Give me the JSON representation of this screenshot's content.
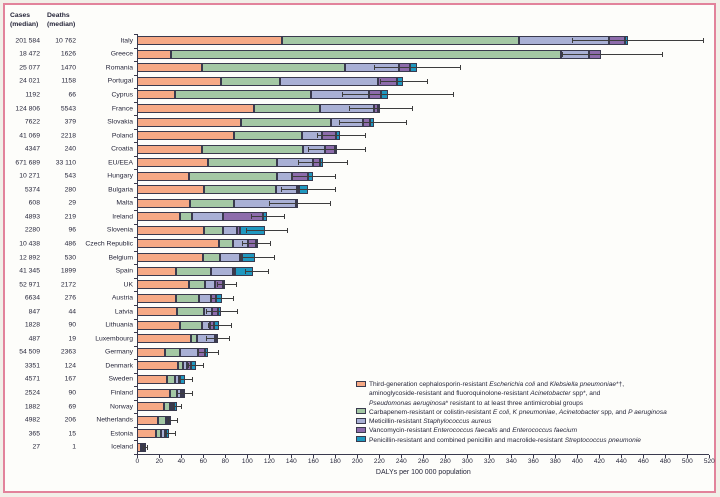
{
  "header": {
    "cases_label": "Cases\n(median)",
    "deaths_label": "Deaths\n(median)"
  },
  "colors": {
    "frame_pink": "#e2839b",
    "background_outer": "#f2efe8",
    "background_inner": "#fdfdfa",
    "text": "#26263a",
    "outline": "#3a3a4e",
    "error_bar": "#3d3d3d",
    "cephalosporin": "#f6a985",
    "carbapenem": "#a4c8a4",
    "mrsa": "#a9b0d5",
    "vre": "#8d6cab",
    "pneumo": "#1f98bf"
  },
  "chart_data": {
    "type": "bar",
    "orientation": "horizontal-stacked",
    "xlabel": "DALYs per 100 000 population",
    "xlim": [
      0,
      520
    ],
    "xtick_step": 20,
    "grid": false,
    "legend_position": "bottom-right",
    "series_keys": [
      "cephalosporin",
      "carbapenem",
      "mrsa",
      "vre",
      "pneumo"
    ],
    "countries": [
      {
        "name": "Italy",
        "cases": "201 584",
        "deaths": "10 762",
        "segments": [
          132,
          215,
          82,
          14,
          3
        ],
        "ci": [
          395,
          514
        ]
      },
      {
        "name": "Greece",
        "cases": "18 472",
        "deaths": "1626",
        "segments": [
          31,
          354,
          26,
          11,
          0
        ],
        "ci": [
          386,
          477
        ]
      },
      {
        "name": "Romania",
        "cases": "25 077",
        "deaths": "1470",
        "segments": [
          59,
          130,
          49,
          10,
          6
        ],
        "ci": [
          215,
          293
        ]
      },
      {
        "name": "Portugal",
        "cases": "24 021",
        "deaths": "1158",
        "segments": [
          76,
          54,
          89,
          17,
          6
        ],
        "ci": [
          221,
          263
        ]
      },
      {
        "name": "Cyprus",
        "cases": "1192",
        "deaths": "66",
        "segments": [
          34,
          124,
          53,
          11,
          6
        ],
        "ci": [
          186,
          287
        ]
      },
      {
        "name": "France",
        "cases": "124 806",
        "deaths": "5543",
        "segments": [
          106,
          60,
          49,
          4,
          2
        ],
        "ci": [
          192,
          250
        ]
      },
      {
        "name": "Slovakia",
        "cases": "7622",
        "deaths": "379",
        "segments": [
          94,
          82,
          29,
          7,
          3
        ],
        "ci": [
          183,
          244
        ]
      },
      {
        "name": "Poland",
        "cases": "41 069",
        "deaths": "2218",
        "segments": [
          88,
          62,
          18,
          13,
          3
        ],
        "ci": [
          163,
          207
        ]
      },
      {
        "name": "Croatia",
        "cases": "4347",
        "deaths": "240",
        "segments": [
          59,
          92,
          20,
          9,
          2
        ],
        "ci": [
          155,
          207
        ]
      },
      {
        "name": "EU/EEA",
        "cases": "671 689",
        "deaths": "33 110",
        "segments": [
          64,
          63,
          33,
          6,
          3
        ],
        "ci": [
          146,
          191
        ]
      },
      {
        "name": "Hungary",
        "cases": "10 271",
        "deaths": "543",
        "segments": [
          47,
          80,
          14,
          14,
          5
        ],
        "ci": [
          140,
          180
        ]
      },
      {
        "name": "Bulgaria",
        "cases": "5374",
        "deaths": "280",
        "segments": [
          61,
          65,
          19,
          2,
          8
        ],
        "ci": [
          131,
          180
        ]
      },
      {
        "name": "Malta",
        "cases": "608",
        "deaths": "29",
        "segments": [
          48,
          40,
          56,
          0,
          1
        ],
        "ci": [
          120,
          175
        ]
      },
      {
        "name": "Ireland",
        "cases": "4893",
        "deaths": "219",
        "segments": [
          39,
          11,
          28,
          36,
          4
        ],
        "ci": [
          103,
          133
        ]
      },
      {
        "name": "Slovenia",
        "cases": "2280",
        "deaths": "96",
        "segments": [
          61,
          17,
          13,
          2,
          23
        ],
        "ci": [
          99,
          136
        ]
      },
      {
        "name": "Czech Republic",
        "cases": "10 438",
        "deaths": "486",
        "segments": [
          74,
          13,
          14,
          7,
          1
        ],
        "ci": [
          95,
          121
        ]
      },
      {
        "name": "Belgium",
        "cases": "12 892",
        "deaths": "530",
        "segments": [
          60,
          15,
          18,
          2,
          12
        ],
        "ci": [
          93,
          124
        ]
      },
      {
        "name": "Spain",
        "cases": "41 345",
        "deaths": "1899",
        "segments": [
          35,
          32,
          20,
          2,
          16
        ],
        "ci": [
          98,
          119
        ]
      },
      {
        "name": "UK",
        "cases": "52 971",
        "deaths": "2172",
        "segments": [
          47,
          15,
          9,
          7,
          2
        ],
        "ci": [
          72,
          90
        ]
      },
      {
        "name": "Austria",
        "cases": "6634",
        "deaths": "276",
        "segments": [
          35,
          21,
          11,
          5,
          5
        ],
        "ci": [
          67,
          87
        ]
      },
      {
        "name": "Latvia",
        "cases": "847",
        "deaths": "44",
        "segments": [
          36,
          25,
          7,
          5,
          3
        ],
        "ci": [
          62,
          91
        ]
      },
      {
        "name": "Lithuania",
        "cases": "1828",
        "deaths": "90",
        "segments": [
          39,
          20,
          7,
          4,
          4
        ],
        "ci": [
          64,
          85
        ]
      },
      {
        "name": "Luxembourg",
        "cases": "487",
        "deaths": "19",
        "segments": [
          49,
          5,
          17,
          1,
          1
        ],
        "ci": [
          62,
          83
        ]
      },
      {
        "name": "Germany",
        "cases": "54 509",
        "deaths": "2363",
        "segments": [
          25,
          14,
          16,
          7,
          2
        ],
        "ci": [
          55,
          73
        ]
      },
      {
        "name": "Denmark",
        "cases": "3351",
        "deaths": "124",
        "segments": [
          37,
          5,
          3,
          4,
          4
        ],
        "ci": [
          46,
          60
        ]
      },
      {
        "name": "Sweden",
        "cases": "4571",
        "deaths": "167",
        "segments": [
          27,
          7,
          4,
          1,
          4
        ],
        "ci": [
          38,
          50
        ]
      },
      {
        "name": "Finland",
        "cases": "2524",
        "deaths": "90",
        "segments": [
          30,
          6,
          4,
          1.5,
          0.5
        ],
        "ci": [
          36,
          50
        ]
      },
      {
        "name": "Norway",
        "cases": "1882",
        "deaths": "69",
        "segments": [
          24,
          6,
          2,
          1,
          3
        ],
        "ci": [
          32,
          40
        ]
      },
      {
        "name": "Netherlands",
        "cases": "4982",
        "deaths": "206",
        "segments": [
          19,
          7,
          2,
          1,
          2
        ],
        "ci": [
          28,
          36
        ]
      },
      {
        "name": "Estonia",
        "cases": "365",
        "deaths": "15",
        "segments": [
          17,
          5,
          3,
          1,
          3
        ],
        "ci": [
          25,
          34
        ]
      },
      {
        "name": "Iceland",
        "cases": "27",
        "deaths": "1",
        "segments": [
          3.5,
          1.5,
          0.5,
          0.5,
          1
        ],
        "ci": [
          5,
          9
        ]
      }
    ]
  },
  "legend": {
    "items": [
      {
        "key": "cephalosporin",
        "lines": [
          [
            {
              "t": "Third-generation cephalosporin-resistant "
            },
            {
              "t": "Escherichia coli",
              "i": true
            },
            {
              "t": " and "
            },
            {
              "t": "Klebsiella pneumoniae",
              "i": true
            },
            {
              "t": "*†,"
            }
          ],
          [
            {
              "t": "aminoglycoside-resistant and fluoroquinolone-resistant "
            },
            {
              "t": "Acinetobacter",
              "i": true
            },
            {
              "t": " spp*, and"
            }
          ],
          [
            {
              "t": "Pseudomonas aeruginosa",
              "i": true
            },
            {
              "t": "* resistant to at least three antimicrobial groups"
            }
          ]
        ]
      },
      {
        "key": "carbapenem",
        "lines": [
          [
            {
              "t": "Carbapenem-resistant or colistin-resistant "
            },
            {
              "t": "E coli",
              "i": true
            },
            {
              "t": ",  "
            },
            {
              "t": "K pneumoniae",
              "i": true
            },
            {
              "t": ", "
            },
            {
              "t": "Acinetobacter",
              "i": true
            },
            {
              "t": " spp, and "
            },
            {
              "t": "P aeruginosa",
              "i": true
            }
          ]
        ]
      },
      {
        "key": "mrsa",
        "lines": [
          [
            {
              "t": "Meticillin-resistant "
            },
            {
              "t": "Staphylococcus aureus",
              "i": true
            }
          ]
        ]
      },
      {
        "key": "vre",
        "lines": [
          [
            {
              "t": "Vancomycin-resistant "
            },
            {
              "t": "Enterococcus faecalis",
              "i": true
            },
            {
              "t": " and "
            },
            {
              "t": "Enterococcus faecium",
              "i": true
            }
          ]
        ]
      },
      {
        "key": "pneumo",
        "lines": [
          [
            {
              "t": "Penicillin-resistant and combined penicillin and macrolide-resistant "
            },
            {
              "t": "Streptococcus pneumonie",
              "i": true
            }
          ]
        ]
      }
    ]
  }
}
